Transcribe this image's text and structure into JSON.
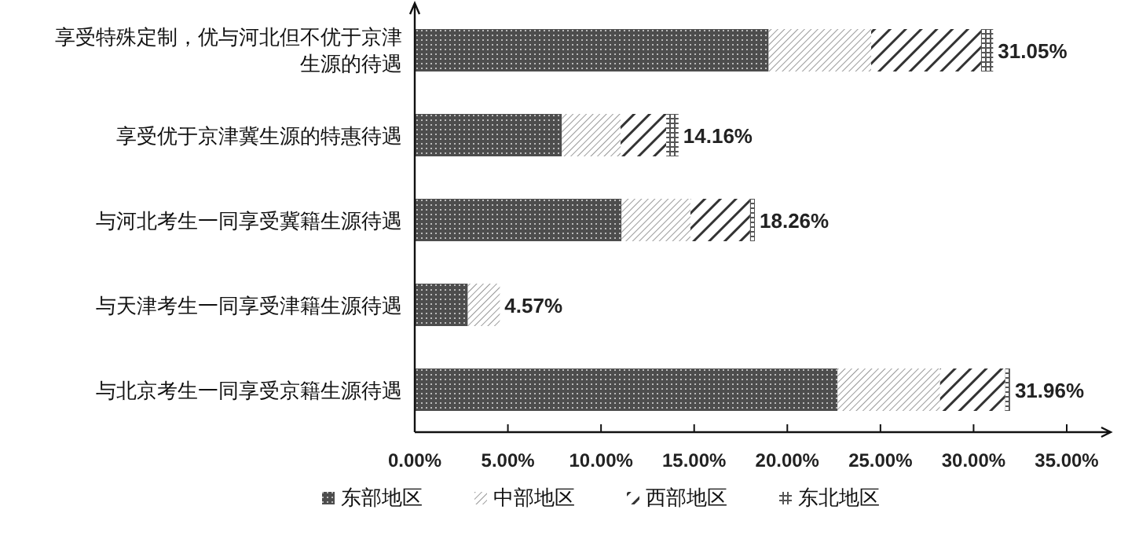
{
  "chart_data": {
    "type": "bar",
    "orientation": "horizontal",
    "stacked": true,
    "categories": [
      "享受特殊定制，优与河北但不优于京津生源的待遇",
      "享受优于京津冀生源的特惠待遇",
      "与河北考生一同享受冀籍生源待遇",
      "与天津考生一同享受津籍生源待遇",
      "与北京考生一同享受京籍生源待遇"
    ],
    "series": [
      {
        "name": "东部地区",
        "color": "#4d4d4d",
        "values": [
          19.0,
          7.9,
          11.1,
          2.85,
          22.7
        ]
      },
      {
        "name": "中部地区",
        "color": "#9a9a9a",
        "values": [
          5.5,
          3.15,
          3.7,
          1.72,
          5.5
        ]
      },
      {
        "name": "西部地区",
        "color": "#333333",
        "values": [
          5.9,
          2.45,
          3.2,
          null,
          3.5
        ]
      },
      {
        "name": "东北地区",
        "color": "#555555",
        "values": [
          0.65,
          0.66,
          0.26,
          null,
          0.26
        ]
      }
    ],
    "totals": [
      "31.05%",
      "14.16%",
      "18.26%",
      "4.57%",
      "31.96%"
    ],
    "xlim": [
      0,
      35
    ],
    "xticks": [
      {
        "value": 0,
        "label": "0.00%"
      },
      {
        "value": 5,
        "label": "5.00%"
      },
      {
        "value": 10,
        "label": "10.00%"
      },
      {
        "value": 15,
        "label": "15.00%"
      },
      {
        "value": 20,
        "label": "20.00%"
      },
      {
        "value": 25,
        "label": "25.00%"
      },
      {
        "value": 30,
        "label": "30.00%"
      },
      {
        "value": 35,
        "label": "35.00%"
      }
    ],
    "grid": false,
    "legend": "bottom"
  }
}
